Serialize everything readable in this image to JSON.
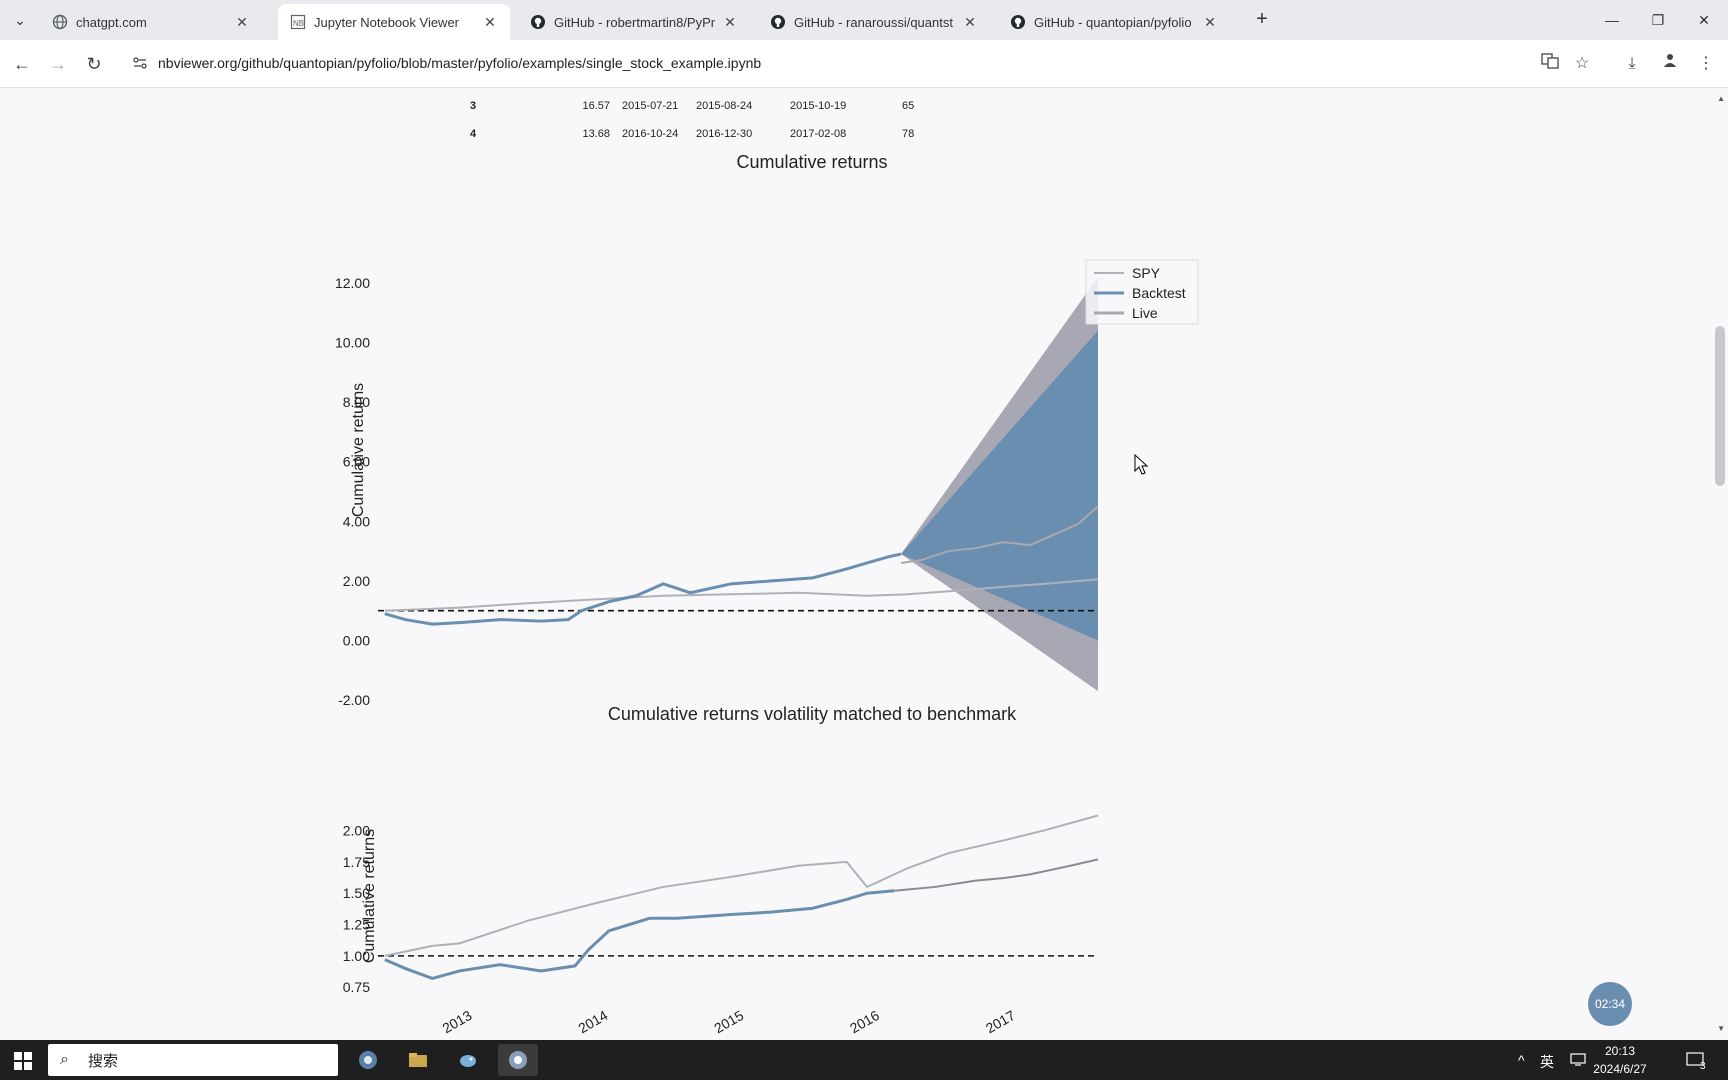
{
  "browser": {
    "tabs": [
      {
        "title": "chatgpt.com",
        "icon": "globe-icon",
        "active": false
      },
      {
        "title": "Jupyter Notebook Viewer",
        "icon": "nbviewer-icon",
        "active": true
      },
      {
        "title": "GitHub - robertmartin8/PyPr",
        "icon": "github-icon",
        "active": false
      },
      {
        "title": "GitHub - ranaroussi/quantst",
        "icon": "github-icon",
        "active": false
      },
      {
        "title": "GitHub - quantopian/pyfolio",
        "icon": "github-icon",
        "active": false
      }
    ],
    "new_tab": "+",
    "url": "nbviewer.org/github/quantopian/pyfolio/blob/master/pyfolio/examples/single_stock_example.ipynb"
  },
  "drawdown_table": {
    "rows": [
      {
        "id": "3",
        "net_drawdown": "16.57",
        "peak": "2015-07-21",
        "valley": "2015-08-24",
        "recovery": "2015-10-19",
        "duration": "65"
      },
      {
        "id": "4",
        "net_drawdown": "13.68",
        "peak": "2016-10-24",
        "valley": "2016-12-30",
        "recovery": "2017-02-08",
        "duration": "78"
      }
    ]
  },
  "chart_data": [
    {
      "type": "line",
      "title": "Cumulative returns",
      "xlabel": "",
      "ylabel": "Cumulative returns",
      "x_tick_labels": [
        "2013",
        "2014",
        "2015",
        "2016",
        "2017"
      ],
      "y_tick_labels": [
        "12.00",
        "10.00",
        "8.00",
        "6.00",
        "4.00",
        "2.00",
        "0.00",
        "-2.00"
      ],
      "ylim": [
        -2.2,
        12.5
      ],
      "xlim": [
        2012.4,
        2017.7
      ],
      "legend": {
        "placement": "top-right",
        "entries": [
          "SPY",
          "Backtest",
          "Live"
        ]
      },
      "baseline": 1.0,
      "series": [
        {
          "name": "SPY",
          "color": "#b0b0b8",
          "x": [
            2012.45,
            2012.75,
            2013.0,
            2013.5,
            2014.0,
            2014.5,
            2015.0,
            2015.5,
            2016.0,
            2016.3,
            2016.6,
            2017.0,
            2017.3,
            2017.7
          ],
          "y": [
            1.0,
            1.05,
            1.1,
            1.25,
            1.38,
            1.5,
            1.55,
            1.6,
            1.5,
            1.55,
            1.65,
            1.8,
            1.9,
            2.05
          ]
        },
        {
          "name": "Backtest",
          "color": "#6a8eb0",
          "x": [
            2012.45,
            2012.6,
            2012.8,
            2013.0,
            2013.3,
            2013.6,
            2013.8,
            2013.9,
            2014.1,
            2014.3,
            2014.5,
            2014.7,
            2015.0,
            2015.3,
            2015.6,
            2015.85,
            2016.0,
            2016.15,
            2016.25
          ],
          "y": [
            0.9,
            0.7,
            0.55,
            0.6,
            0.7,
            0.65,
            0.7,
            1.0,
            1.3,
            1.5,
            1.9,
            1.6,
            1.9,
            2.0,
            2.1,
            2.4,
            2.6,
            2.8,
            2.9
          ]
        },
        {
          "name": "Live",
          "color": "#a8a8b0",
          "x": [
            2016.25,
            2016.4,
            2016.6,
            2016.8,
            2017.0,
            2017.2,
            2017.4,
            2017.55,
            2017.7
          ],
          "y": [
            2.6,
            2.7,
            3.0,
            3.1,
            3.3,
            3.2,
            3.6,
            3.9,
            4.5
          ]
        }
      ],
      "cone": {
        "start_x": 2016.25,
        "start_y": 2.9,
        "end_x": 2017.7,
        "outer_upper_end": 12.2,
        "inner_upper_end": 10.4,
        "inner_lower_end": 0.0,
        "outer_lower_end": -1.7,
        "outer_color": "#a8a8b4",
        "inner_color": "#6a8eb0"
      }
    },
    {
      "type": "line",
      "title": "Cumulative returns volatility matched to benchmark",
      "xlabel": "",
      "ylabel": "Cumulative returns",
      "x_tick_labels": [
        "2013",
        "2014",
        "2015",
        "2016",
        "2017"
      ],
      "y_tick_labels": [
        "2.00",
        "1.75",
        "1.50",
        "1.25",
        "1.00",
        "0.75"
      ],
      "ylim": [
        0.68,
        2.1
      ],
      "xlim": [
        2012.4,
        2017.7
      ],
      "baseline": 1.0,
      "series": [
        {
          "name": "",
          "color": "#b0b0b8",
          "x": [
            2012.45,
            2012.8,
            2013.0,
            2013.5,
            2014.0,
            2014.5,
            2015.0,
            2015.5,
            2015.85,
            2016.0,
            2016.3,
            2016.6,
            2017.0,
            2017.3,
            2017.7
          ],
          "y": [
            1.0,
            1.08,
            1.1,
            1.28,
            1.42,
            1.55,
            1.63,
            1.72,
            1.75,
            1.55,
            1.7,
            1.82,
            1.92,
            2.0,
            2.12
          ]
        },
        {
          "name": "",
          "color": "#6a8eb0",
          "x": [
            2012.45,
            2012.6,
            2012.8,
            2013.0,
            2013.3,
            2013.6,
            2013.85,
            2013.95,
            2014.1,
            2014.4,
            2014.6,
            2015.0,
            2015.3,
            2015.6,
            2015.85,
            2016.0,
            2016.2
          ],
          "y": [
            0.97,
            0.9,
            0.82,
            0.88,
            0.93,
            0.88,
            0.92,
            1.05,
            1.2,
            1.3,
            1.3,
            1.33,
            1.35,
            1.38,
            1.45,
            1.5,
            1.52
          ]
        },
        {
          "name": "",
          "color": "#8a8a95",
          "x": [
            2016.2,
            2016.5,
            2016.8,
            2017.0,
            2017.2,
            2017.5,
            2017.7
          ],
          "y": [
            1.52,
            1.55,
            1.6,
            1.62,
            1.65,
            1.72,
            1.77
          ]
        }
      ]
    }
  ],
  "overlay": {
    "timer": "02:34"
  },
  "taskbar": {
    "search_placeholder": "搜索",
    "tray_lang": "英",
    "time": "20:13",
    "date": "2024/6/27",
    "notif_count": "3"
  }
}
